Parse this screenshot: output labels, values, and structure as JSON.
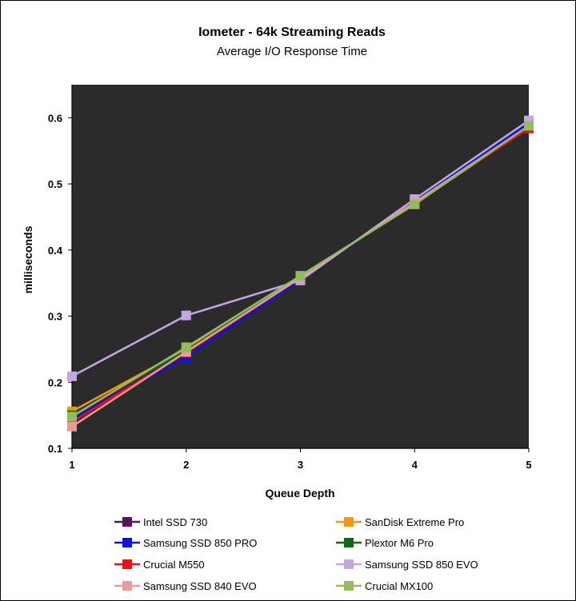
{
  "chart_data": {
    "type": "line",
    "title": "Iometer - 64k Streaming Reads",
    "subtitle": "Average I/O Response Time",
    "xlabel": "Queue Depth",
    "ylabel": "milliseconds",
    "x": [
      1,
      2,
      3,
      4,
      5
    ],
    "xlim": [
      1,
      5
    ],
    "ylim": [
      0.1,
      0.65
    ],
    "yticks": [
      0.1,
      0.2,
      0.3,
      0.4,
      0.5,
      0.6
    ],
    "ytick_labels": [
      "0.1",
      "0.2",
      "0.3",
      "0.4",
      "0.5",
      "0.6"
    ],
    "xtick_labels": [
      "1",
      "2",
      "3",
      "4",
      "5"
    ],
    "grid": false,
    "plot_background": "#2b2b2b",
    "legend_position": "bottom",
    "series": [
      {
        "name": "Intel SSD 730",
        "color": "#5b0f63",
        "values": [
          0.148,
          0.243,
          0.357,
          0.472,
          0.59
        ]
      },
      {
        "name": "SanDisk Extreme Pro",
        "color": "#f0980c",
        "values": [
          0.156,
          0.25,
          0.36,
          0.47,
          0.585
        ]
      },
      {
        "name": "Samsung SSD 850 PRO",
        "color": "#0b14e6",
        "values": [
          0.145,
          0.238,
          0.355,
          0.473,
          0.592
        ]
      },
      {
        "name": "Plextor M6 Pro",
        "color": "#0d6b16",
        "values": [
          0.15,
          0.248,
          0.36,
          0.47,
          0.586
        ]
      },
      {
        "name": "Crucial M550",
        "color": "#f01010",
        "values": [
          0.14,
          0.245,
          0.358,
          0.472,
          0.584
        ]
      },
      {
        "name": "Samsung SSD 850 EVO",
        "color": "#c2a6e6",
        "values": [
          0.209,
          0.301,
          0.354,
          0.477,
          0.596
        ]
      },
      {
        "name": "Samsung SSD 840 EVO",
        "color": "#ec9a98",
        "values": [
          0.133,
          0.246,
          0.358,
          0.472,
          0.588
        ]
      },
      {
        "name": "Crucial MX100",
        "color": "#92bd5c",
        "values": [
          0.148,
          0.253,
          0.361,
          0.469,
          0.588
        ]
      }
    ]
  }
}
